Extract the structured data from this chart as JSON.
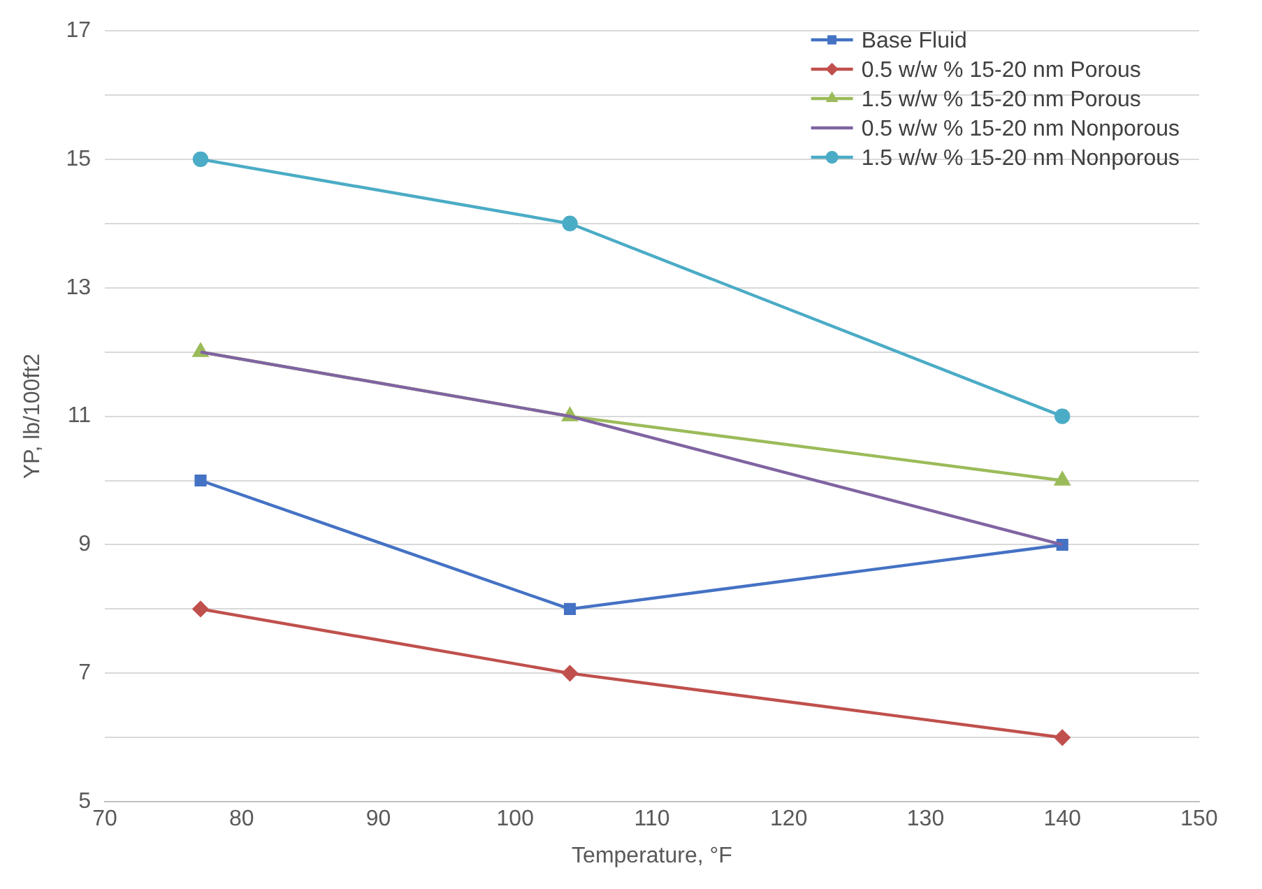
{
  "chart_data": {
    "type": "line",
    "xlabel": "Temperature, °F",
    "ylabel": "YP, lb/100ft2",
    "x": [
      77,
      104,
      140
    ],
    "series": [
      {
        "name": "Base Fluid",
        "color": "#4472c4",
        "marker": "square",
        "values": [
          10,
          8,
          9
        ]
      },
      {
        "name": "0.5 w/w % 15-20 nm Porous",
        "color": "#c0504d",
        "marker": "diamond",
        "values": [
          8,
          7,
          6
        ]
      },
      {
        "name": "1.5 w/w % 15-20 nm Porous",
        "color": "#9bbb59",
        "marker": "triangle",
        "values": [
          12,
          11,
          10
        ]
      },
      {
        "name": "0.5 w/w % 15-20 nm Nonporous",
        "color": "#8064a2",
        "marker": "none",
        "values": [
          12,
          11,
          9
        ]
      },
      {
        "name": "1.5 w/w % 15-20 nm Nonporous",
        "color": "#4bacc6",
        "marker": "circle",
        "values": [
          15,
          14,
          11
        ]
      }
    ],
    "xlim": [
      70,
      150
    ],
    "xticks": [
      70,
      80,
      90,
      100,
      110,
      120,
      130,
      140,
      150
    ],
    "ylim": [
      5,
      17
    ],
    "yticks": [
      5,
      {
        "value": 6,
        "label": null
      },
      7,
      {
        "value": 8,
        "label": null
      },
      9,
      {
        "value": 10,
        "label": null
      },
      11,
      {
        "value": 12,
        "label": null
      },
      13,
      {
        "value": 14,
        "label": null
      },
      15,
      {
        "value": 16,
        "label": null
      },
      17
    ],
    "grid": "y",
    "legend": "top right",
    "line_style": "solid"
  }
}
